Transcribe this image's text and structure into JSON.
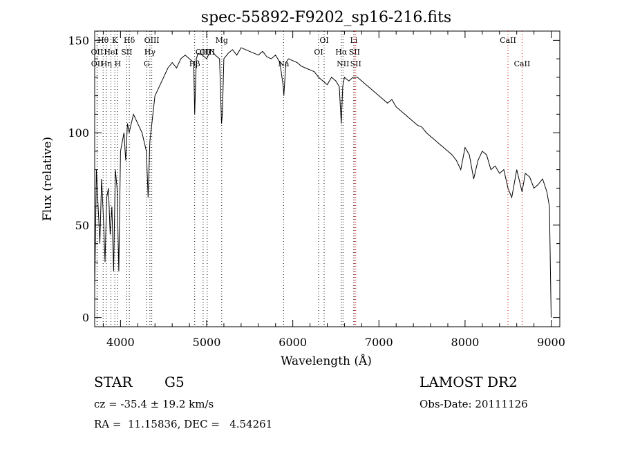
{
  "chart_data": {
    "type": "line",
    "title": "spec-55892-F9202_sp16-216.fits",
    "xlabel": "Wavelength (Å)",
    "ylabel": "Flux (relative)",
    "xlim": [
      3700,
      9100
    ],
    "ylim": [
      -5,
      155
    ],
    "xticks": [
      4000,
      5000,
      6000,
      7000,
      8000,
      9000
    ],
    "yticks": [
      0,
      50,
      100,
      150
    ],
    "grid": false,
    "series": [
      {
        "x": [
          3700,
          3720,
          3740,
          3760,
          3780,
          3800,
          3820,
          3840,
          3860,
          3880,
          3900,
          3920,
          3940,
          3960,
          3980,
          4000,
          4020,
          4040,
          4060,
          4080,
          4100,
          4150,
          4200,
          4250,
          4300,
          4320,
          4340,
          4400,
          4450,
          4500,
          4550,
          4600,
          4650,
          4700,
          4750,
          4800,
          4850,
          4861,
          4880,
          4900,
          4950,
          5000,
          5050,
          5100,
          5150,
          5172,
          5183,
          5200,
          5250,
          5300,
          5350,
          5400,
          5450,
          5500,
          5550,
          5600,
          5650,
          5700,
          5750,
          5800,
          5850,
          5890,
          5896,
          5920,
          5950,
          6000,
          6050,
          6100,
          6150,
          6200,
          6250,
          6300,
          6350,
          6400,
          6450,
          6500,
          6540,
          6563,
          6580,
          6600,
          6650,
          6700,
          6750,
          6800,
          6850,
          6900,
          6950,
          7000,
          7050,
          7100,
          7150,
          7200,
          7250,
          7300,
          7350,
          7400,
          7450,
          7500,
          7550,
          7600,
          7650,
          7700,
          7750,
          7800,
          7850,
          7900,
          7950,
          8000,
          8050,
          8100,
          8150,
          8200,
          8250,
          8300,
          8350,
          8400,
          8450,
          8498,
          8542,
          8600,
          8662,
          8700,
          8750,
          8800,
          8850,
          8900,
          8950,
          8980,
          9000
        ],
        "y": [
          15,
          80,
          60,
          40,
          75,
          55,
          30,
          65,
          70,
          45,
          60,
          25,
          80,
          70,
          25,
          90,
          95,
          100,
          85,
          105,
          100,
          110,
          105,
          100,
          90,
          65,
          95,
          120,
          125,
          130,
          135,
          138,
          135,
          140,
          142,
          140,
          138,
          110,
          140,
          143,
          142,
          140,
          145,
          142,
          140,
          105,
          110,
          140,
          143,
          145,
          142,
          146,
          145,
          144,
          143,
          142,
          144,
          141,
          140,
          142,
          138,
          125,
          120,
          138,
          140,
          139,
          138,
          136,
          135,
          134,
          133,
          130,
          128,
          126,
          130,
          128,
          125,
          105,
          125,
          130,
          128,
          130,
          130,
          128,
          126,
          124,
          122,
          120,
          118,
          116,
          118,
          114,
          112,
          110,
          108,
          106,
          104,
          103,
          100,
          98,
          96,
          94,
          92,
          90,
          88,
          85,
          80,
          92,
          88,
          75,
          85,
          90,
          88,
          80,
          82,
          78,
          80,
          70,
          65,
          80,
          68,
          78,
          76,
          70,
          72,
          75,
          68,
          60,
          0
        ]
      }
    ],
    "lines": [
      {
        "label": "Hθ",
        "x": 3798,
        "row": 0,
        "color": "#000000"
      },
      {
        "label": "K",
        "x": 3934,
        "row": 0,
        "color": "#000000"
      },
      {
        "label": "Hδ",
        "x": 4102,
        "row": 0,
        "color": "#000000"
      },
      {
        "label": "OIII",
        "x": 4363,
        "row": 0,
        "color": "#000000"
      },
      {
        "label": "Mg",
        "x": 5175,
        "row": 0,
        "color": "#000000"
      },
      {
        "label": "OI",
        "x": 6364,
        "row": 0,
        "color": "#000000"
      },
      {
        "label": "Li",
        "x": 6708,
        "row": 0,
        "color": "#000000"
      },
      {
        "label": "CaII",
        "x": 8498,
        "row": 0,
        "color": "#cc0000"
      },
      {
        "label": "OII",
        "x": 3727,
        "row": 1,
        "color": "#000000"
      },
      {
        "label": "HeI",
        "x": 3889,
        "row": 1,
        "color": "#000000"
      },
      {
        "label": "SII",
        "x": 4072,
        "row": 1,
        "color": "#000000"
      },
      {
        "label": "Hγ",
        "x": 4341,
        "row": 1,
        "color": "#000000"
      },
      {
        "label": "OIII",
        "x": 4959,
        "row": 1,
        "color": "#000000"
      },
      {
        "label": "OI",
        "x": 6300,
        "row": 1,
        "color": "#000000"
      },
      {
        "label": "Hα",
        "x": 6563,
        "row": 1,
        "color": "#000000"
      },
      {
        "label": "SII",
        "x": 6716,
        "row": 1,
        "color": "#cc0000"
      },
      {
        "label": "OIII",
        "x": 5007,
        "row": 1,
        "color": "#000000"
      },
      {
        "label": "OII",
        "x": 3729,
        "row": 2,
        "color": "#000000"
      },
      {
        "label": "Hη",
        "x": 3835,
        "row": 2,
        "color": "#000000"
      },
      {
        "label": "H",
        "x": 3968,
        "row": 2,
        "color": "#000000"
      },
      {
        "label": "G",
        "x": 4305,
        "row": 2,
        "color": "#000000"
      },
      {
        "label": "Hβ",
        "x": 4861,
        "row": 2,
        "color": "#000000"
      },
      {
        "label": "Na",
        "x": 5893,
        "row": 2,
        "color": "#000000"
      },
      {
        "label": "NII",
        "x": 6583,
        "row": 2,
        "color": "#000000"
      },
      {
        "label": "SII",
        "x": 6731,
        "row": 2,
        "color": "#cc0000"
      },
      {
        "label": "CaII",
        "x": 8662,
        "row": 2,
        "color": "#cc0000"
      }
    ]
  },
  "info": {
    "class": "STAR",
    "subclass": "G5",
    "survey": "LAMOST DR2",
    "cz": "cz = -35.4 ± 19.2 km/s",
    "obs_date": "Obs-Date: 20111126",
    "coords": "RA =  11.15836, DEC =   4.54261"
  }
}
